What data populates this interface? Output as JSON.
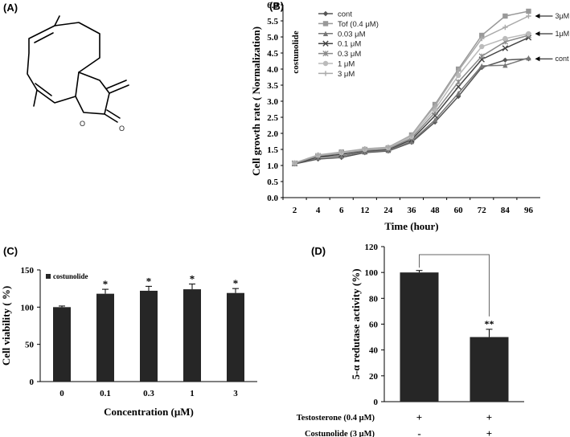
{
  "panels": {
    "a": "(A)",
    "b": "(B)",
    "c": "(C)",
    "d": "(D)"
  },
  "chart_data": [
    {
      "type": "line",
      "panel": "B",
      "title": "",
      "xlabel": "Time (hour)",
      "ylabel": "Cell growth rate ( Normalization)",
      "ylim": [
        0,
        6
      ],
      "yticks": [
        "0.0",
        "0.5",
        "1.0",
        "1.5",
        "2.0",
        "2.5",
        "3.0",
        "3.5",
        "4.0",
        "4.5",
        "5.0",
        "5.5",
        "6.0"
      ],
      "categories": [
        "2",
        "4",
        "6",
        "12",
        "24",
        "36",
        "48",
        "60",
        "72",
        "84",
        "96"
      ],
      "series_group_label": "costunolide",
      "series": [
        {
          "name": "cont",
          "color": "#555555",
          "marker": "diamond",
          "values": [
            1.05,
            1.2,
            1.25,
            1.4,
            1.45,
            1.72,
            2.35,
            3.15,
            4.05,
            4.28,
            4.32
          ]
        },
        {
          "name": "Tof (0.4 μM)",
          "color": "#999999",
          "marker": "square",
          "values": [
            1.07,
            1.3,
            1.42,
            1.5,
            1.55,
            1.95,
            2.9,
            4.0,
            5.05,
            5.65,
            5.8
          ]
        },
        {
          "name": "0.03 μM",
          "color": "#777777",
          "marker": "triangle",
          "values": [
            1.06,
            1.25,
            1.3,
            1.42,
            1.47,
            1.75,
            2.42,
            3.25,
            4.1,
            4.12,
            4.35
          ]
        },
        {
          "name": "0.1 μM",
          "color": "#444444",
          "marker": "x",
          "values": [
            1.06,
            1.27,
            1.35,
            1.45,
            1.5,
            1.8,
            2.55,
            3.45,
            4.3,
            4.65,
            4.98
          ]
        },
        {
          "name": "0.3 μM",
          "color": "#8a8a8a",
          "marker": "star",
          "values": [
            1.07,
            1.3,
            1.38,
            1.47,
            1.52,
            1.85,
            2.65,
            3.6,
            4.4,
            4.85,
            5.05
          ]
        },
        {
          "name": "1 μM",
          "color": "#bbbbbb",
          "marker": "circle",
          "values": [
            1.08,
            1.32,
            1.4,
            1.5,
            1.55,
            1.9,
            2.75,
            3.8,
            4.7,
            4.95,
            5.1
          ]
        },
        {
          "name": "3 μM",
          "color": "#aaaaaa",
          "marker": "plus",
          "values": [
            1.08,
            1.33,
            1.42,
            1.52,
            1.57,
            1.95,
            2.85,
            3.95,
            4.95,
            5.3,
            5.65
          ]
        }
      ],
      "annotations": [
        {
          "text": "3μM",
          "value": 5.65
        },
        {
          "text": "1μM",
          "value": 5.1
        },
        {
          "text": "cont",
          "value": 4.32
        }
      ]
    },
    {
      "type": "bar",
      "panel": "C",
      "title": "",
      "xlabel": "Concentration (μM)",
      "ylabel": "Cell viability ( %)",
      "ylim": [
        0,
        150
      ],
      "yticks": [
        "0",
        "50",
        "100",
        "150"
      ],
      "legend": "costunolide",
      "categories": [
        "0",
        "0.1",
        "0.3",
        "1",
        "3"
      ],
      "values": [
        100,
        118,
        122,
        124,
        119
      ],
      "errors": [
        1.5,
        6,
        6,
        7,
        6
      ],
      "significance": [
        "",
        "*",
        "*",
        "*",
        "*"
      ]
    },
    {
      "type": "bar",
      "panel": "D",
      "title": "",
      "xlabel": "",
      "ylabel": "5-α redutase activity (%)",
      "ylim": [
        0,
        120
      ],
      "yticks": [
        "0",
        "20",
        "40",
        "60",
        "80",
        "100",
        "120"
      ],
      "categories": [
        "Testosterone + / Costunolide -",
        "Testosterone + / Costunolide +"
      ],
      "values": [
        100,
        50
      ],
      "errors": [
        1.5,
        6
      ],
      "significance": [
        "",
        "**"
      ],
      "condition_rows": [
        {
          "label": "Testosterone (0.4 μM)",
          "marks": [
            "+",
            "+"
          ]
        },
        {
          "label": "Costunolide (3 μM)",
          "marks": [
            "-",
            "+"
          ]
        }
      ]
    }
  ]
}
